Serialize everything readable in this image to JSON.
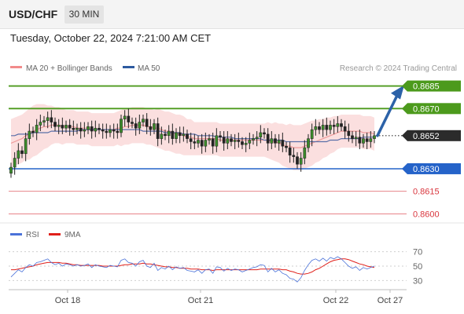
{
  "header": {
    "symbol": "USD/CHF",
    "timeframe": "30 MIN",
    "datetime": "Tuesday, October 22, 2024 7:21:00 AM CET"
  },
  "legend": {
    "items": [
      {
        "label": "MA 20 + Bollinger Bands",
        "color": "#f28b8b"
      },
      {
        "label": "MA 50",
        "color": "#2d5aa0"
      }
    ],
    "credit": "Research © 2024 Trading Central"
  },
  "chart_data": [
    {
      "type": "line",
      "name": "price",
      "ylim": [
        0.8595,
        0.869
      ],
      "last_price": "0.8652",
      "levels": [
        {
          "value": 0.8685,
          "label": "0.8685",
          "color": "#4c9a1c",
          "kind": "target",
          "filled": true
        },
        {
          "value": 0.867,
          "label": "0.8670",
          "color": "#4c9a1c",
          "kind": "resistance",
          "filled": true
        },
        {
          "value": 0.863,
          "label": "0.8630",
          "color": "#2563c9",
          "kind": "pivot",
          "filled": true
        },
        {
          "value": 0.8615,
          "label": "0.8615",
          "color": "#d9363e",
          "kind": "support",
          "filled": false
        },
        {
          "value": 0.86,
          "label": "0.8600",
          "color": "#d9363e",
          "kind": "support",
          "filled": false
        }
      ],
      "close": [
        0.8631,
        0.8637,
        0.8642,
        0.864,
        0.865,
        0.8655,
        0.8654,
        0.8659,
        0.8661,
        0.8662,
        0.8664,
        0.8661,
        0.8658,
        0.8659,
        0.8657,
        0.8659,
        0.8657,
        0.8656,
        0.8657,
        0.8655,
        0.8656,
        0.8658,
        0.8655,
        0.8657,
        0.8656,
        0.8655,
        0.8654,
        0.8656,
        0.8655,
        0.8654,
        0.8663,
        0.8665,
        0.8661,
        0.866,
        0.8657,
        0.8661,
        0.8663,
        0.8658,
        0.8656,
        0.866,
        0.865,
        0.8653,
        0.8652,
        0.8655,
        0.865,
        0.8654,
        0.8652,
        0.8653,
        0.865,
        0.8648,
        0.8647,
        0.8649,
        0.8645,
        0.8649,
        0.865,
        0.8645,
        0.8652,
        0.8651,
        0.8647,
        0.865,
        0.8648,
        0.8649,
        0.8648,
        0.8646,
        0.8647,
        0.8649,
        0.865,
        0.8651,
        0.8654,
        0.8653,
        0.8647,
        0.865,
        0.8647,
        0.8649,
        0.8645,
        0.8644,
        0.8639,
        0.8638,
        0.8633,
        0.8637,
        0.8644,
        0.865,
        0.8656,
        0.8658,
        0.8656,
        0.8659,
        0.8656,
        0.8659,
        0.8658,
        0.866,
        0.8658,
        0.8655,
        0.8652,
        0.865,
        0.8651,
        0.8647,
        0.865,
        0.8648,
        0.865,
        0.8652
      ],
      "ma20": [
        0.8647,
        0.8648,
        0.8649,
        0.865,
        0.8652,
        0.8653,
        0.8655,
        0.8656,
        0.8657,
        0.8658,
        0.8658,
        0.8659,
        0.8659,
        0.8659,
        0.8658,
        0.8658,
        0.8658,
        0.8658,
        0.8657,
        0.8657,
        0.8657,
        0.8657,
        0.8656,
        0.8656,
        0.8656,
        0.8656,
        0.8656,
        0.8656,
        0.8656,
        0.8657,
        0.8657,
        0.8658,
        0.8658,
        0.8659,
        0.8659,
        0.8659,
        0.8659,
        0.8658,
        0.8658,
        0.8657,
        0.8657,
        0.8656,
        0.8655,
        0.8655,
        0.8654,
        0.8653,
        0.8653,
        0.8652,
        0.8651,
        0.8651,
        0.865,
        0.865,
        0.865,
        0.865,
        0.865,
        0.865,
        0.865,
        0.8649,
        0.8649,
        0.8649,
        0.8649,
        0.8649,
        0.8649,
        0.8649,
        0.8649,
        0.8649,
        0.8649,
        0.8649,
        0.8649,
        0.8649,
        0.8649,
        0.8648,
        0.8648,
        0.8647,
        0.8646,
        0.8645,
        0.8645,
        0.8644,
        0.8644,
        0.8644,
        0.8645,
        0.8646,
        0.8647,
        0.8648,
        0.8649,
        0.865,
        0.8651,
        0.8652,
        0.8653,
        0.8654,
        0.8655,
        0.8655,
        0.8655,
        0.8655,
        0.8655,
        0.8655,
        0.8654,
        0.8654,
        0.8654,
        0.8653
      ],
      "ma50": [
        0.8652,
        0.8652,
        0.8653,
        0.8653,
        0.8653,
        0.8653,
        0.8654,
        0.8654,
        0.8654,
        0.8654,
        0.8654,
        0.8655,
        0.8655,
        0.8655,
        0.8655,
        0.8655,
        0.8655,
        0.8655,
        0.8655,
        0.8656,
        0.8656,
        0.8656,
        0.8656,
        0.8656,
        0.8656,
        0.8656,
        0.8656,
        0.8656,
        0.8656,
        0.8656,
        0.8656,
        0.8656,
        0.8656,
        0.8656,
        0.8656,
        0.8656,
        0.8655,
        0.8655,
        0.8655,
        0.8655,
        0.8655,
        0.8655,
        0.8654,
        0.8654,
        0.8654,
        0.8654,
        0.8654,
        0.8653,
        0.8653,
        0.8653,
        0.8653,
        0.8652,
        0.8652,
        0.8652,
        0.8652,
        0.8652,
        0.8651,
        0.8651,
        0.8651,
        0.8651,
        0.8651,
        0.865,
        0.865,
        0.865,
        0.865,
        0.865,
        0.865,
        0.865,
        0.865,
        0.8649,
        0.8649,
        0.8649,
        0.8649,
        0.8649,
        0.8649,
        0.8648,
        0.8648,
        0.8648,
        0.8648,
        0.8648,
        0.8648,
        0.8648,
        0.8648,
        0.8648,
        0.8648,
        0.8648,
        0.8648,
        0.8649,
        0.8649,
        0.8649,
        0.865,
        0.865,
        0.865,
        0.865,
        0.865,
        0.865,
        0.8651,
        0.8651,
        0.8651,
        0.8651
      ],
      "band_width": [
        0.0016,
        0.0016,
        0.0016,
        0.0016,
        0.0016,
        0.0017,
        0.0017,
        0.0017,
        0.0016,
        0.0015,
        0.0014,
        0.0013,
        0.0012,
        0.0012,
        0.0012,
        0.0011,
        0.0011,
        0.0011,
        0.0011,
        0.0011,
        0.0011,
        0.0011,
        0.0011,
        0.0011,
        0.0011,
        0.0011,
        0.0011,
        0.0011,
        0.0011,
        0.0011,
        0.0012,
        0.0012,
        0.0012,
        0.0012,
        0.0012,
        0.0012,
        0.0012,
        0.0012,
        0.0012,
        0.0012,
        0.0013,
        0.0013,
        0.0013,
        0.0013,
        0.0013,
        0.0013,
        0.0013,
        0.0013,
        0.0012,
        0.0012,
        0.0011,
        0.0011,
        0.0011,
        0.0011,
        0.0011,
        0.0011,
        0.0011,
        0.0011,
        0.0011,
        0.0011,
        0.0011,
        0.0011,
        0.0011,
        0.0011,
        0.0011,
        0.0011,
        0.0011,
        0.0011,
        0.0011,
        0.0011,
        0.0012,
        0.0012,
        0.0013,
        0.0013,
        0.0014,
        0.0014,
        0.0015,
        0.0015,
        0.0015,
        0.0015,
        0.0015,
        0.0015,
        0.0015,
        0.0014,
        0.0014,
        0.0013,
        0.0013,
        0.0012,
        0.0012,
        0.0011,
        0.0011,
        0.0011,
        0.0011,
        0.0011,
        0.0011,
        0.0011,
        0.0011,
        0.0011,
        0.0011,
        0.0011
      ],
      "projection": [
        0.8652,
        0.8685
      ]
    },
    {
      "type": "line",
      "name": "oscillator",
      "legend": [
        {
          "label": "RSI",
          "color": "#4a72d9"
        },
        {
          "label": "9MA",
          "color": "#e0201a"
        }
      ],
      "ylim": [
        25,
        75
      ],
      "yticks": [
        30,
        50,
        70
      ],
      "rsi": [
        35,
        40,
        45,
        42,
        48,
        52,
        50,
        55,
        56,
        58,
        60,
        55,
        52,
        54,
        50,
        53,
        52,
        50,
        52,
        50,
        51,
        53,
        48,
        52,
        50,
        49,
        48,
        51,
        50,
        49,
        58,
        60,
        55,
        54,
        50,
        56,
        58,
        50,
        48,
        54,
        44,
        48,
        46,
        50,
        45,
        49,
        47,
        48,
        44,
        43,
        42,
        45,
        40,
        45,
        46,
        40,
        49,
        48,
        43,
        47,
        44,
        46,
        45,
        42,
        44,
        46,
        48,
        49,
        52,
        51,
        42,
        47,
        42,
        45,
        40,
        38,
        33,
        32,
        28,
        34,
        44,
        52,
        58,
        60,
        57,
        61,
        57,
        62,
        60,
        63,
        60,
        55,
        50,
        47,
        49,
        44,
        48,
        46,
        48,
        50
      ],
      "ma9": [
        45,
        45,
        46,
        47,
        48,
        49,
        50,
        52,
        53,
        54,
        55,
        55,
        55,
        55,
        54,
        54,
        53,
        52,
        52,
        51,
        51,
        51,
        51,
        51,
        51,
        50,
        50,
        50,
        50,
        50,
        51,
        52,
        52,
        53,
        53,
        53,
        54,
        53,
        53,
        52,
        51,
        50,
        49,
        49,
        48,
        48,
        47,
        47,
        47,
        46,
        46,
        46,
        45,
        45,
        45,
        44,
        45,
        45,
        45,
        45,
        45,
        45,
        45,
        45,
        45,
        45,
        45,
        45,
        46,
        46,
        46,
        46,
        46,
        46,
        45,
        45,
        43,
        42,
        40,
        39,
        39,
        40,
        42,
        45,
        47,
        50,
        53,
        56,
        58,
        59,
        60,
        60,
        59,
        57,
        55,
        53,
        52,
        50,
        49,
        48
      ]
    }
  ],
  "x_axis": {
    "labels": [
      "Oct 18",
      "Oct 21",
      "Oct 22",
      "Oct 27"
    ]
  }
}
